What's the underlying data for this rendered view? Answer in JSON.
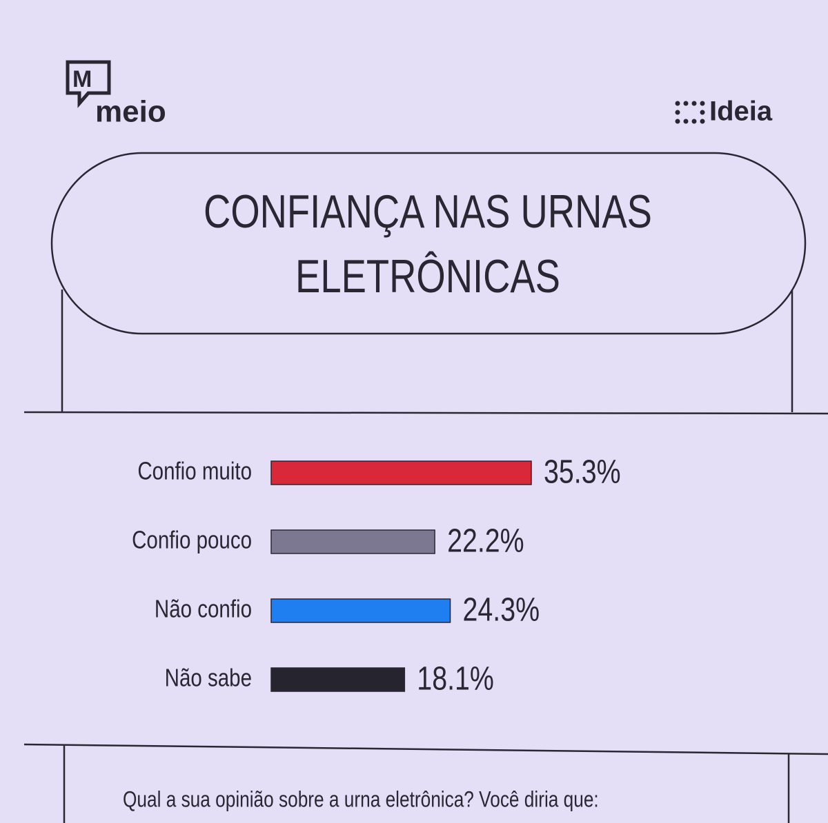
{
  "brand_left": "meio",
  "brand_right": "Ideia",
  "chart_data": {
    "type": "bar",
    "orientation": "horizontal",
    "title": "CONFIANÇA NAS URNAS ELETRÔNICAS",
    "categories": [
      "Confio muito",
      "Confio pouco",
      "Não confio",
      "Não sabe"
    ],
    "values": [
      35.3,
      22.2,
      24.3,
      18.1
    ],
    "value_labels": [
      "35.3%",
      "22.2%",
      "24.3%",
      "18.1%"
    ],
    "colors": [
      "#d8283a",
      "#7c7891",
      "#1f7ff0",
      "#26242f"
    ],
    "question": "Qual a sua opinião sobre a urna eletrônica? Você diria que:"
  }
}
